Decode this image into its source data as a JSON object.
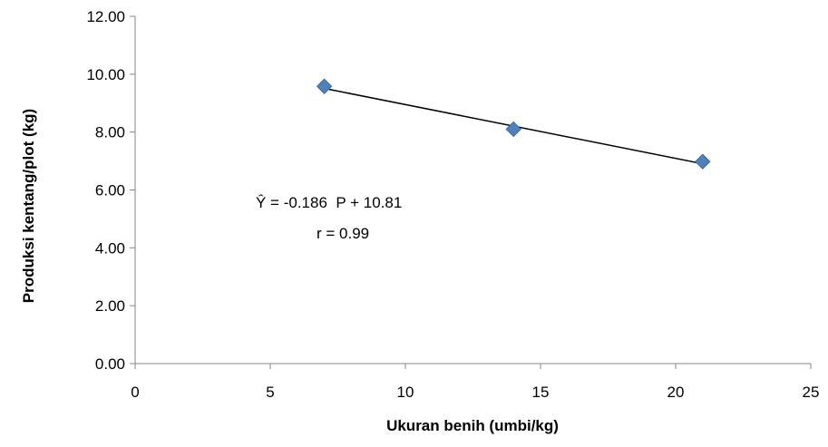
{
  "chart_data": {
    "type": "scatter",
    "title": "",
    "xlabel": "Ukuran benih (umbi/kg)",
    "ylabel": "Produksi kentang/plot (kg)",
    "xlim": [
      0,
      25
    ],
    "ylim": [
      0,
      12
    ],
    "x_ticks": [
      0,
      5,
      10,
      15,
      20,
      25
    ],
    "x_tick_labels": [
      "0",
      "5",
      "10",
      "15",
      "20",
      "25"
    ],
    "y_ticks": [
      0,
      2,
      4,
      6,
      8,
      10,
      12
    ],
    "y_tick_labels": [
      "0.00",
      "2.00",
      "4.00",
      "6.00",
      "8.00",
      "10.00",
      "12.00"
    ],
    "grid": false,
    "legend": "none",
    "points": [
      {
        "x": 7,
        "y": 9.58
      },
      {
        "x": 14,
        "y": 8.1
      },
      {
        "x": 21,
        "y": 6.98
      }
    ],
    "trendline": {
      "slope": -0.186,
      "intercept": 10.81,
      "x_start": 7,
      "x_end": 21
    },
    "annotations": {
      "equation": "Ŷ = -0.186  P + 10.81",
      "r_value": "r = 0.99"
    },
    "colors": {
      "marker_fill": "#4f81bd",
      "marker_stroke": "#3a6aa6",
      "trendline": "#000000",
      "axis": "#868686"
    }
  }
}
